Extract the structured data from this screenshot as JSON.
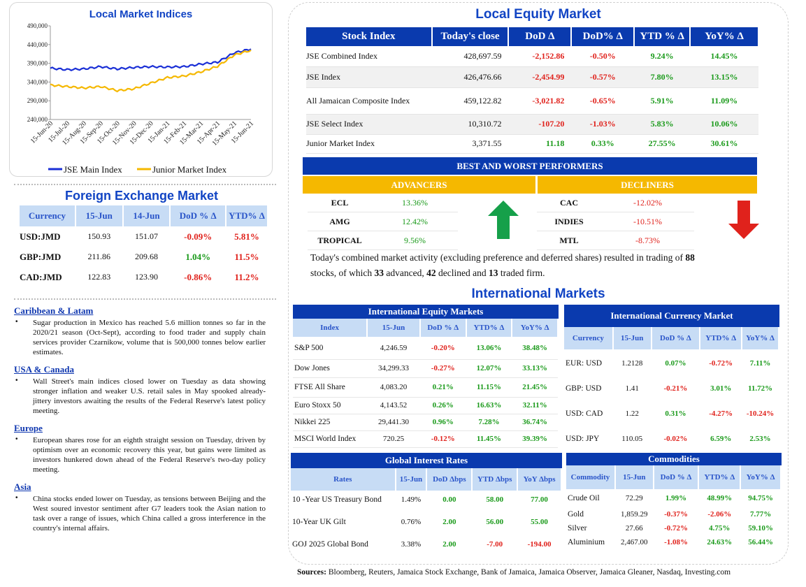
{
  "chart_data": {
    "type": "line",
    "title": "Local Market Indices",
    "x": [
      "15-Jun-20",
      "15-Jul-20",
      "15-Aug-20",
      "15-Sep-20",
      "15-Oct-20",
      "15-Nov-20",
      "15-Dec-20",
      "15-Jan-21",
      "15-Feb-21",
      "15-Mar-21",
      "15-Apr-21",
      "15-May-21",
      "15-Jun-21"
    ],
    "ylim": [
      240000,
      490000
    ],
    "yticks": [
      "490,000",
      "440,000",
      "390,000",
      "340,000",
      "290,000",
      "240,000"
    ],
    "series": [
      {
        "name": "JSE Main Index",
        "color": "#1a2fd6",
        "values": [
          377000,
          373000,
          375000,
          381000,
          375000,
          379000,
          381000,
          380000,
          381000,
          388000,
          393000,
          418000,
          428000
        ]
      },
      {
        "name": "Junior Market Index",
        "color": "#f5b800",
        "values": [
          332000,
          328000,
          324000,
          328000,
          317000,
          322000,
          337000,
          352000,
          356000,
          367000,
          382000,
          412000,
          425000
        ]
      }
    ],
    "legend": "bottom"
  },
  "local_equity": {
    "title": "Local Equity Market",
    "headers": [
      "Stock Index",
      "Today's close",
      "DoD  Δ",
      "DoD% Δ",
      "YTD % Δ",
      "YoY% Δ"
    ],
    "rows": [
      {
        "name": "JSE Combined Index",
        "close": "428,697.59",
        "dod": "-2,152.86",
        "dodp": "-0.50%",
        "ytd": "9.24%",
        "yoy": "14.45%"
      },
      {
        "name": "JSE Index",
        "close": "426,476.66",
        "dod": "-2,454.99",
        "dodp": "-0.57%",
        "ytd": "7.80%",
        "yoy": "13.15%"
      },
      {
        "name": "All Jamaican Composite Index",
        "close": "459,122.82",
        "dod": "-3,021.82",
        "dodp": "-0.65%",
        "ytd": "5.91%",
        "yoy": "11.09%"
      },
      {
        "name": "JSE Select Index",
        "close": "10,310.72",
        "dod": "-107.20",
        "dodp": "-1.03%",
        "ytd": "5.83%",
        "yoy": "10.06%"
      },
      {
        "name": "Junior Market Index",
        "close": "3,371.55",
        "dod": "11.18",
        "dodp": "0.33%",
        "ytd": "27.55%",
        "yoy": "30.61%"
      }
    ]
  },
  "performers": {
    "title": "BEST AND WORST PERFORMERS",
    "adv_label": "ADVANCERS",
    "dec_label": "DECLINERS",
    "advancers": [
      {
        "name": "ECL",
        "value": "13.36%"
      },
      {
        "name": "AMG",
        "value": "12.42%"
      },
      {
        "name": "TROPICAL",
        "value": "9.56%"
      }
    ],
    "decliners": [
      {
        "name": "CAC",
        "value": "-12.02%"
      },
      {
        "name": "INDIES",
        "value": "-10.51%"
      },
      {
        "name": "MTL",
        "value": "-8.73%"
      }
    ]
  },
  "activity": {
    "t1": "Today's combined market activity (excluding preference and deferred shares) resulted in trading of ",
    "n1": "88",
    "t2": "stocks, of which ",
    "n2": "33",
    "t3": " advanced, ",
    "n3": "42",
    "t4": " declined and ",
    "n4": "13",
    "t5": " traded firm."
  },
  "fx": {
    "title": "Foreign Exchange Market",
    "headers": [
      "Currency",
      "15-Jun",
      "14-Jun",
      "DoD % Δ",
      "YTD% Δ"
    ],
    "rows": [
      {
        "cur": "USD:JMD",
        "a": "150.93",
        "b": "151.07",
        "dod": "-0.09%",
        "ytd": "5.81%"
      },
      {
        "cur": "GBP:JMD",
        "a": "211.86",
        "b": "209.68",
        "dod": "1.04%",
        "ytd": "11.5%"
      },
      {
        "cur": "CAD:JMD",
        "a": "122.83",
        "b": "123.90",
        "dod": "-0.86%",
        "ytd": "11.2%"
      }
    ]
  },
  "news": [
    {
      "region": "Caribbean & Latam",
      "text": "Sugar production in Mexico has reached 5.6 million tonnes so far in the 2020/21 season (Oct-Sept), according to food trader and supply chain services provider Czarnikow, volume that is 500,000 tonnes below earlier estimates."
    },
    {
      "region": "USA & Canada",
      "text": "Wall Street's main indices closed lower on Tuesday as data showing stronger inflation and weaker U.S. retail sales in May spooked already-jittery investors awaiting the results of the Federal Reserve's latest policy meeting."
    },
    {
      "region": "Europe",
      "text": "European shares rose for an eighth straight session on Tuesday, driven by optimism over an economic recovery this year, but gains were limited as investors hunkered down ahead of the Federal Reserve's two-day policy meeting."
    },
    {
      "region": "Asia",
      "text": "China stocks ended lower on Tuesday, as tensions between Beijing and the West soured investor sentiment after G7 leaders took the Asian nation to task over a range of issues, which China called a gross interference in the country's internal affairs."
    }
  ],
  "intl_title": "International Markets",
  "intl_equity": {
    "title": "International Equity Markets",
    "headers": [
      "Index",
      "15-Jun",
      "DoD % Δ",
      "YTD% Δ",
      "YoY% Δ"
    ],
    "rows": [
      {
        "name": "S&P 500",
        "v": "4,246.59",
        "dod": "-0.20%",
        "ytd": "13.06%",
        "yoy": "38.48%"
      },
      {
        "name": "Dow Jones",
        "v": "34,299.33",
        "dod": "-0.27%",
        "ytd": "12.07%",
        "yoy": "33.13%"
      },
      {
        "name": "FTSE All Share",
        "v": "4,083.20",
        "dod": "0.21%",
        "ytd": "11.15%",
        "yoy": "21.45%"
      },
      {
        "name": "Euro Stoxx 50",
        "v": "4,143.52",
        "dod": "0.26%",
        "ytd": "16.63%",
        "yoy": "32.11%"
      },
      {
        "name": "Nikkei 225",
        "v": "29,441.30",
        "dod": "0.96%",
        "ytd": "7.28%",
        "yoy": "36.74%"
      },
      {
        "name": "MSCI World Index",
        "v": "720.25",
        "dod": "-0.12%",
        "ytd": "11.45%",
        "yoy": "39.39%"
      }
    ]
  },
  "intl_currency": {
    "title": "International Currency Market",
    "headers": [
      "Currency",
      "15-Jun",
      "DoD % Δ",
      "YTD% Δ",
      "YoY% Δ"
    ],
    "rows": [
      {
        "name": "EUR: USD",
        "v": "1.2128",
        "dod": "0.07%",
        "ytd": "-0.72%",
        "yoy": "7.11%"
      },
      {
        "name": "GBP: USD",
        "v": "1.41",
        "dod": "-0.21%",
        "ytd": "3.01%",
        "yoy": "11.72%"
      },
      {
        "name": "USD: CAD",
        "v": "1.22",
        "dod": "0.31%",
        "ytd": "-4.27%",
        "yoy": "-10.24%"
      },
      {
        "name": "USD: JPY",
        "v": "110.05",
        "dod": "-0.02%",
        "ytd": "6.59%",
        "yoy": "2.53%"
      }
    ]
  },
  "rates": {
    "title": "Global Interest Rates",
    "headers": [
      "Rates",
      "15-Jun",
      "DoD Δbps",
      "YTD Δbps",
      "YoY Δbps"
    ],
    "rows": [
      {
        "name": "10 -Year US Treasury Bond",
        "v": "1.49%",
        "dod": "0.00",
        "ytd": "58.00",
        "yoy": "77.00"
      },
      {
        "name": "10-Year UK Gilt",
        "v": "0.76%",
        "dod": "2.00",
        "ytd": "56.00",
        "yoy": "55.00"
      },
      {
        "name": "GOJ 2025 Global Bond",
        "v": "3.38%",
        "dod": "2.00",
        "ytd": "-7.00",
        "yoy": "-194.00"
      }
    ]
  },
  "commodities": {
    "title": "Commodities",
    "headers": [
      "Commodity",
      "15-Jun",
      "DoD % Δ",
      "YTD% Δ",
      "YoY% Δ"
    ],
    "rows": [
      {
        "name": "Crude Oil",
        "v": "72.29",
        "dod": "1.99%",
        "ytd": "48.99%",
        "yoy": "94.75%"
      },
      {
        "name": "Gold",
        "v": "1,859.29",
        "dod": "-0.37%",
        "ytd": "-2.06%",
        "yoy": "7.77%"
      },
      {
        "name": "Silver",
        "v": "27.66",
        "dod": "-0.72%",
        "ytd": "4.75%",
        "yoy": "59.10%"
      },
      {
        "name": "Aluminium",
        "v": "2,467.00",
        "dod": "-1.08%",
        "ytd": "24.63%",
        "yoy": "56.44%"
      }
    ]
  },
  "sources": {
    "label": "Sources:",
    "text": " Bloomberg, Reuters, Jamaica Stock Exchange, Bank of Jamaica, Jamaica Observer, Jamaica Gleaner, Nasdaq, Investing.com"
  },
  "colors": {
    "blue": "#0a3aae",
    "light": "#c7dcf5",
    "gold": "#f5b800",
    "pos": "#1a9a1a",
    "neg": "#e0221c"
  }
}
